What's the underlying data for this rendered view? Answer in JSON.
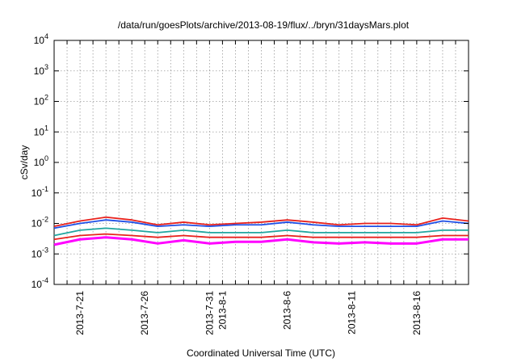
{
  "chart_data": {
    "type": "line",
    "title": "/data/run/goesPlots/archive/2013-08-19/flux/../bryn/31daysMars.plot",
    "xlabel": "Coordinated Universal Time (UTC)",
    "ylabel": "cSv/day",
    "yscale": "log",
    "ylim": [
      0.0001,
      10000
    ],
    "xlim": [
      "2013-07-19",
      "2013-08-20"
    ],
    "grid": true,
    "y_ticks": [
      {
        "base": "10",
        "exp": "4"
      },
      {
        "base": "10",
        "exp": "3"
      },
      {
        "base": "10",
        "exp": "2"
      },
      {
        "base": "10",
        "exp": "1"
      },
      {
        "base": "10",
        "exp": "0"
      },
      {
        "base": "10",
        "exp": "-1"
      },
      {
        "base": "10",
        "exp": "-2"
      },
      {
        "base": "10",
        "exp": "-3"
      },
      {
        "base": "10",
        "exp": "-4"
      }
    ],
    "x_ticks": [
      "2013-7-21",
      "2013-7-26",
      "2013-7-31",
      "2013-8-1",
      "2013-8-6",
      "2013-8-11",
      "2013-8-16"
    ],
    "series": [
      {
        "color": "#e8211d",
        "x": [
          "2013-07-19",
          "2013-07-21",
          "2013-07-23",
          "2013-07-25",
          "2013-07-27",
          "2013-07-29",
          "2013-07-31",
          "2013-08-02",
          "2013-08-04",
          "2013-08-06",
          "2013-08-08",
          "2013-08-10",
          "2013-08-12",
          "2013-08-14",
          "2013-08-16",
          "2013-08-18",
          "2013-08-20"
        ],
        "y": [
          0.008,
          0.012,
          0.016,
          0.013,
          0.009,
          0.011,
          0.009,
          0.01,
          0.011,
          0.013,
          0.011,
          0.009,
          0.01,
          0.01,
          0.009,
          0.015,
          0.012
        ]
      },
      {
        "color": "#1e4fe6",
        "x": [
          "2013-07-19",
          "2013-07-21",
          "2013-07-23",
          "2013-07-25",
          "2013-07-27",
          "2013-07-29",
          "2013-07-31",
          "2013-08-02",
          "2013-08-04",
          "2013-08-06",
          "2013-08-08",
          "2013-08-10",
          "2013-08-12",
          "2013-08-14",
          "2013-08-16",
          "2013-08-18",
          "2013-08-20"
        ],
        "y": [
          0.007,
          0.01,
          0.013,
          0.011,
          0.008,
          0.009,
          0.008,
          0.009,
          0.009,
          0.011,
          0.009,
          0.008,
          0.008,
          0.008,
          0.008,
          0.012,
          0.01
        ]
      },
      {
        "color": "#20a6a0",
        "x": [
          "2013-07-19",
          "2013-07-21",
          "2013-07-23",
          "2013-07-25",
          "2013-07-27",
          "2013-07-29",
          "2013-07-31",
          "2013-08-02",
          "2013-08-04",
          "2013-08-06",
          "2013-08-08",
          "2013-08-10",
          "2013-08-12",
          "2013-08-14",
          "2013-08-16",
          "2013-08-18",
          "2013-08-20"
        ],
        "y": [
          0.004,
          0.006,
          0.007,
          0.006,
          0.005,
          0.006,
          0.005,
          0.005,
          0.005,
          0.006,
          0.005,
          0.005,
          0.005,
          0.005,
          0.005,
          0.006,
          0.006
        ]
      },
      {
        "color": "#e8211d",
        "x": [
          "2013-07-19",
          "2013-07-21",
          "2013-07-23",
          "2013-07-25",
          "2013-07-27",
          "2013-07-29",
          "2013-07-31",
          "2013-08-02",
          "2013-08-04",
          "2013-08-06",
          "2013-08-08",
          "2013-08-10",
          "2013-08-12",
          "2013-08-14",
          "2013-08-16",
          "2013-08-18",
          "2013-08-20"
        ],
        "y": [
          0.003,
          0.004,
          0.0045,
          0.004,
          0.0035,
          0.004,
          0.0035,
          0.0035,
          0.0035,
          0.004,
          0.0035,
          0.0035,
          0.0035,
          0.0035,
          0.0035,
          0.004,
          0.004
        ]
      },
      {
        "color": "#ff00ff",
        "x": [
          "2013-07-19",
          "2013-07-21",
          "2013-07-23",
          "2013-07-25",
          "2013-07-27",
          "2013-07-29",
          "2013-07-31",
          "2013-08-02",
          "2013-08-04",
          "2013-08-06",
          "2013-08-08",
          "2013-08-10",
          "2013-08-12",
          "2013-08-14",
          "2013-08-16",
          "2013-08-18",
          "2013-08-20"
        ],
        "y": [
          0.002,
          0.003,
          0.0035,
          0.003,
          0.0022,
          0.0028,
          0.0022,
          0.0025,
          0.0025,
          0.003,
          0.0024,
          0.0022,
          0.0024,
          0.0022,
          0.0022,
          0.003,
          0.003
        ]
      }
    ]
  }
}
